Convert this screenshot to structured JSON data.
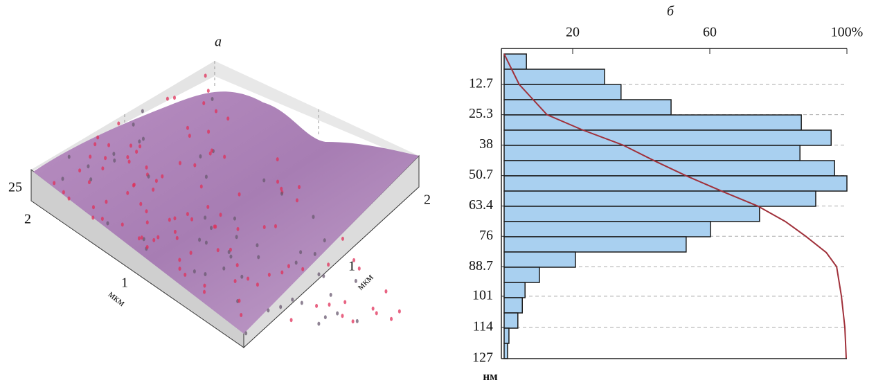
{
  "surface_plot": {
    "title": "а",
    "z_ticks": [
      25
    ],
    "left_axis": {
      "ticks": [
        2,
        1
      ],
      "label": "мкм"
    },
    "right_axis": {
      "ticks": [
        2,
        1
      ],
      "label": "мкм"
    }
  },
  "chart_data": {
    "type": "hbar_histogram",
    "title": "б",
    "y_label": "нм",
    "bins": [
      0,
      6.35,
      12.7,
      19.05,
      25.4,
      31.75,
      38.1,
      44.45,
      50.8,
      57.15,
      63.5,
      69.85,
      76.2,
      82.55,
      88.9,
      95.25,
      101.6,
      107.95,
      114.3,
      120.65,
      127
    ],
    "values": [
      6.5,
      29.3,
      34.1,
      48.7,
      86.7,
      95.4,
      86.3,
      96.4,
      100,
      90.9,
      74.5,
      60.2,
      53.1,
      20.8,
      10.3,
      6.1,
      5.3,
      4.0,
      1.4,
      1.0
    ],
    "color": "#a9d0f0",
    "curve": {
      "color": "#a0303a",
      "y": [
        0,
        12.7,
        25.3,
        31.5,
        38,
        44.5,
        50.7,
        57.5,
        63.4,
        69.8,
        76,
        82.8,
        88.7,
        101,
        114,
        127
      ],
      "values": [
        0,
        4.4,
        12.5,
        22.6,
        34.7,
        43.8,
        53,
        64,
        74,
        82,
        88,
        94,
        97,
        98.4,
        99.4,
        99.8
      ]
    },
    "xlim": [
      0,
      100
    ],
    "xticks": [
      20,
      60,
      {
        "value": 100,
        "label": "100%"
      }
    ],
    "ylim": [
      0,
      127
    ],
    "yticks": [
      12.7,
      25.3,
      38,
      50.7,
      63.4,
      76,
      88.7,
      101,
      114,
      127
    ],
    "grid": true
  }
}
